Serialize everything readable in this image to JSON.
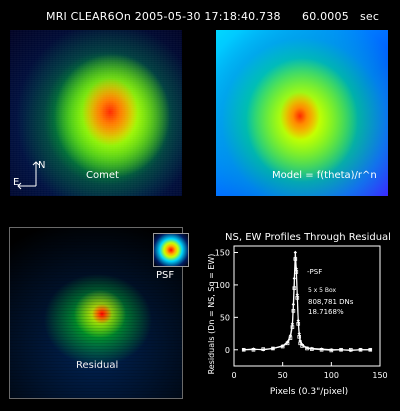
{
  "header": {
    "instrument": "MRI CLEAR6",
    "on_date": "On 2005-05-30 17:18:40.738",
    "exposure": "60.0005",
    "exposure_unit": "sec"
  },
  "panels": {
    "comet_label": "Comet",
    "compass_e": "E",
    "compass_n": "N",
    "model_label": "Model = f(theta)/r^n",
    "residual_label": "Residual",
    "psf_label": "PSF"
  },
  "plot": {
    "title": "NS, EW Profiles Through Residual",
    "ylabel": "Residuals (Dn = NS, Sq = EW)",
    "xlabel": "Pixels (0.3\"/pixel)",
    "y_tick_labels": [
      "0",
      "50",
      "100",
      "150"
    ],
    "x_tick_labels": [
      "0",
      "50",
      "100",
      "150"
    ],
    "annot_psf": "-PSF",
    "annot_box": "5 x 5 Box",
    "annot_dns": "808,781 DNs",
    "annot_pct": "18.7168%"
  },
  "chart_data": {
    "type": "line",
    "title": "NS, EW Profiles Through Residual",
    "xlabel": "Pixels (0.3\"/pixel)",
    "ylabel": "Residuals (Dn = NS, Sq = EW)",
    "xlim": [
      0,
      150
    ],
    "ylim": [
      -25,
      160
    ],
    "x_ticks": [
      0,
      50,
      100,
      150
    ],
    "y_ticks": [
      0,
      50,
      100,
      150
    ],
    "series": [
      {
        "x": [
          10,
          20,
          30,
          40,
          50,
          55,
          58,
          60,
          61,
          62,
          63,
          64,
          65,
          66,
          67,
          68,
          70,
          75,
          80,
          90,
          100,
          110,
          120,
          130,
          140
        ],
        "y": [
          0,
          1,
          0,
          2,
          6,
          12,
          22,
          40,
          70,
          110,
          150,
          125,
          85,
          45,
          25,
          14,
          8,
          3,
          2,
          1,
          0,
          0,
          -1,
          0,
          0
        ]
      },
      {
        "x": [
          10,
          20,
          30,
          40,
          50,
          55,
          58,
          60,
          61,
          62,
          63,
          64,
          65,
          66,
          67,
          68,
          70,
          75,
          80,
          90,
          100,
          110,
          120,
          130,
          140
        ],
        "y": [
          0,
          0,
          1,
          2,
          5,
          10,
          18,
          35,
          60,
          95,
          140,
          120,
          80,
          40,
          20,
          10,
          6,
          2,
          1,
          0,
          -1,
          0,
          0,
          0,
          0
        ]
      }
    ]
  }
}
